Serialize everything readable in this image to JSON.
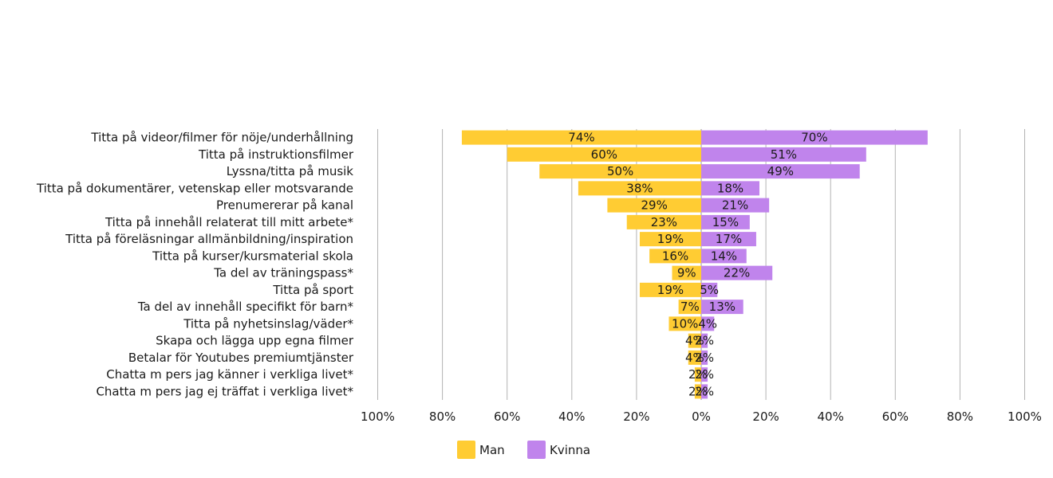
{
  "chart_data": {
    "type": "bar",
    "orientation": "horizontal-butterfly",
    "categories": [
      "Titta på videor/filmer för nöje/underhållning",
      "Titta på instruktionsfilmer",
      "Lyssna/titta på musik",
      "Titta på dokumentärer, vetenskap eller motsvarande",
      "Prenumererar på kanal",
      "Titta på innehåll relaterat till mitt arbete*",
      "Titta på föreläsningar allmänbildning/inspiration",
      "Titta på kurser/kursmaterial skola",
      "Ta del av träningspass*",
      "Titta på sport",
      "Ta del av innehåll specifikt för barn*",
      "Titta på nyhetsinslag/väder*",
      "Skapa och lägga upp egna filmer",
      "Betalar för Youtubes premiumtjänster",
      "Chatta m pers jag känner i verkliga livet*",
      "Chatta m pers jag ej träffat i verkliga livet*"
    ],
    "series": [
      {
        "name": "Man",
        "color": "#FFCC33",
        "side": "left",
        "values": [
          74,
          60,
          50,
          38,
          29,
          23,
          19,
          16,
          9,
          19,
          7,
          10,
          4,
          4,
          2,
          2
        ]
      },
      {
        "name": "Kvinna",
        "color": "#C084EC",
        "side": "right",
        "values": [
          70,
          51,
          49,
          18,
          21,
          15,
          17,
          14,
          22,
          5,
          13,
          4,
          2,
          2,
          2,
          2
        ]
      }
    ],
    "value_format": "{v}%",
    "xlim": [
      -100,
      100
    ],
    "xticks": [
      "100%",
      "80%",
      "60%",
      "40%",
      "20%",
      "0%",
      "20%",
      "40%",
      "60%",
      "80%",
      "100%"
    ],
    "grid": true,
    "legend_position": "bottom",
    "title": "",
    "xlabel": "",
    "ylabel": ""
  }
}
